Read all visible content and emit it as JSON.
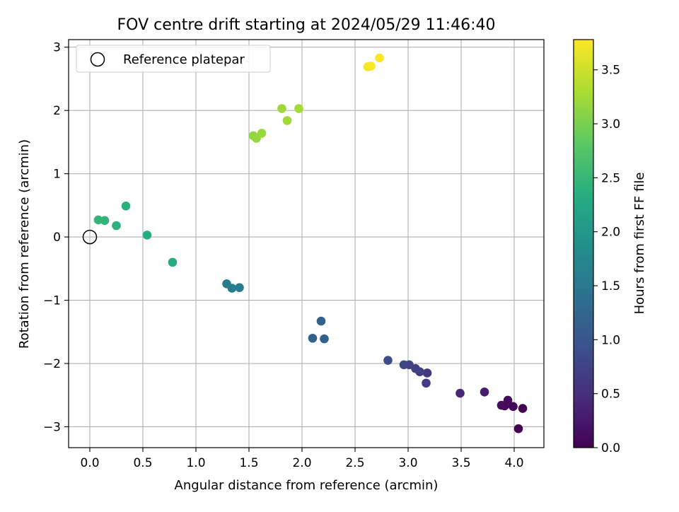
{
  "chart_data": {
    "type": "scatter",
    "title": "FOV centre drift starting at 2024/05/29 11:46:40",
    "xlabel": "Angular distance from reference (arcmin)",
    "ylabel": "Rotation from reference (arcmin)",
    "xlim": [
      -0.2,
      4.28
    ],
    "ylim": [
      -3.33,
      3.12
    ],
    "xticks": [
      0.0,
      0.5,
      1.0,
      1.5,
      2.0,
      2.5,
      3.0,
      3.5,
      4.0
    ],
    "xtick_labels": [
      "0.0",
      "0.5",
      "1.0",
      "1.5",
      "2.0",
      "2.5",
      "3.0",
      "3.5",
      "4.0"
    ],
    "yticks": [
      -3,
      -2,
      -1,
      0,
      1,
      2,
      3
    ],
    "ytick_labels": [
      "−3",
      "−2",
      "−1",
      "0",
      "1",
      "2",
      "3"
    ],
    "grid": true,
    "legend": {
      "placement": "upper-left",
      "entries": [
        {
          "label": "Reference platepar",
          "marker": "open-circle"
        }
      ]
    },
    "reference_point": {
      "x": 0.0,
      "y": 0.0,
      "label": "Reference platepar"
    },
    "colorbar": {
      "label": "Hours from first FF file",
      "colormap": "viridis",
      "range": [
        0.0,
        3.78
      ],
      "ticks": [
        0.0,
        0.5,
        1.0,
        1.5,
        2.0,
        2.5,
        3.0,
        3.5
      ],
      "tick_labels": [
        "0.0",
        "0.5",
        "1.0",
        "1.5",
        "2.0",
        "2.5",
        "3.0",
        "3.5"
      ]
    },
    "points": [
      {
        "x": 4.04,
        "y": -3.03,
        "hours": 0.0
      },
      {
        "x": 4.08,
        "y": -2.71,
        "hours": 0.03
      },
      {
        "x": 3.99,
        "y": -2.68,
        "hours": 0.05
      },
      {
        "x": 3.91,
        "y": -2.67,
        "hours": 0.07
      },
      {
        "x": 3.94,
        "y": -2.58,
        "hours": 0.1
      },
      {
        "x": 3.88,
        "y": -2.66,
        "hours": 0.12
      },
      {
        "x": 3.72,
        "y": -2.45,
        "hours": 0.3
      },
      {
        "x": 3.49,
        "y": -2.47,
        "hours": 0.4
      },
      {
        "x": 3.18,
        "y": -2.15,
        "hours": 0.62
      },
      {
        "x": 3.17,
        "y": -2.31,
        "hours": 0.65
      },
      {
        "x": 3.11,
        "y": -2.13,
        "hours": 0.68
      },
      {
        "x": 3.07,
        "y": -2.08,
        "hours": 0.72
      },
      {
        "x": 3.01,
        "y": -2.02,
        "hours": 0.76
      },
      {
        "x": 2.96,
        "y": -2.02,
        "hours": 0.8
      },
      {
        "x": 2.81,
        "y": -1.95,
        "hours": 0.88
      },
      {
        "x": 2.18,
        "y": -1.33,
        "hours": 1.15
      },
      {
        "x": 2.21,
        "y": -1.61,
        "hours": 1.17
      },
      {
        "x": 2.1,
        "y": -1.6,
        "hours": 1.2
      },
      {
        "x": 1.41,
        "y": -0.8,
        "hours": 1.55
      },
      {
        "x": 1.34,
        "y": -0.81,
        "hours": 1.58
      },
      {
        "x": 1.29,
        "y": -0.74,
        "hours": 1.6
      },
      {
        "x": 0.78,
        "y": -0.4,
        "hours": 2.3
      },
      {
        "x": 0.54,
        "y": 0.03,
        "hours": 2.35
      },
      {
        "x": 0.34,
        "y": 0.49,
        "hours": 2.38
      },
      {
        "x": 0.25,
        "y": 0.18,
        "hours": 2.4
      },
      {
        "x": 0.14,
        "y": 0.26,
        "hours": 2.45
      },
      {
        "x": 0.08,
        "y": 0.27,
        "hours": 2.48
      },
      {
        "x": 1.54,
        "y": 1.6,
        "hours": 3.15
      },
      {
        "x": 1.57,
        "y": 1.56,
        "hours": 3.17
      },
      {
        "x": 1.62,
        "y": 1.64,
        "hours": 3.2
      },
      {
        "x": 1.81,
        "y": 2.03,
        "hours": 3.22
      },
      {
        "x": 1.86,
        "y": 1.84,
        "hours": 3.23
      },
      {
        "x": 1.97,
        "y": 2.03,
        "hours": 3.25
      },
      {
        "x": 2.62,
        "y": 2.69,
        "hours": 3.74
      },
      {
        "x": 2.65,
        "y": 2.7,
        "hours": 3.76
      },
      {
        "x": 2.73,
        "y": 2.83,
        "hours": 3.78
      }
    ]
  }
}
